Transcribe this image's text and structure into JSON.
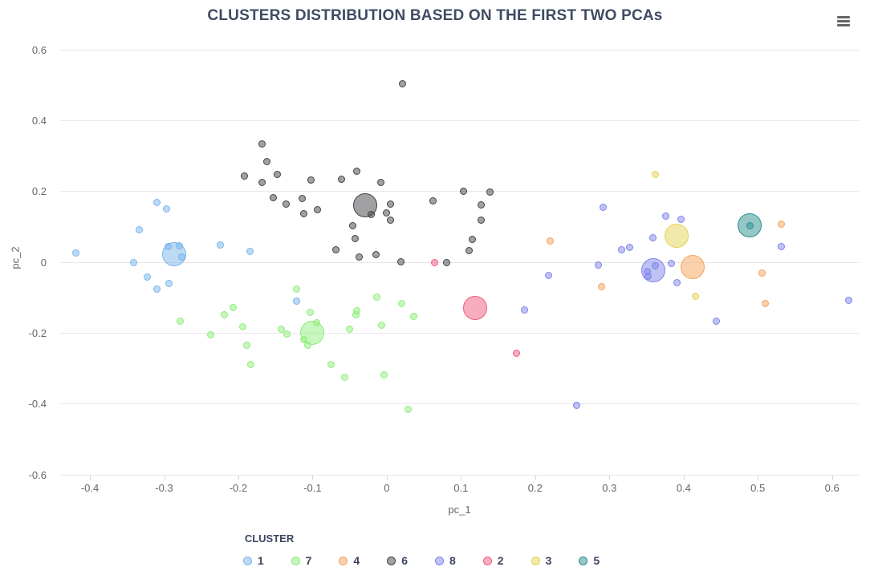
{
  "chart_data": {
    "type": "scatter",
    "title": "CLUSTERS DISTRIBUTION BASED ON THE FIRST TWO PCAs",
    "xlabel": "pc_1",
    "ylabel": "pc_2",
    "xlim": [
      -0.44,
      0.636
    ],
    "ylim": [
      -0.601,
      0.626
    ],
    "grid": "horizontal-only",
    "legend_position": "bottom",
    "legend_title": "CLUSTER",
    "point_radius": 4.5,
    "centroid_radius": 15,
    "x_ticks": [
      {
        "v": -0.4,
        "label": "-0.4"
      },
      {
        "v": -0.3,
        "label": "-0.3"
      },
      {
        "v": -0.2,
        "label": "-0.2"
      },
      {
        "v": -0.1,
        "label": "-0.1"
      },
      {
        "v": 0,
        "label": "0"
      },
      {
        "v": 0.1,
        "label": "0.1"
      },
      {
        "v": 0.2,
        "label": "0.2"
      },
      {
        "v": 0.3,
        "label": "0.3"
      },
      {
        "v": 0.4,
        "label": "0.4"
      },
      {
        "v": 0.5,
        "label": "0.5"
      },
      {
        "v": 0.6,
        "label": "0.6"
      }
    ],
    "y_ticks": [
      {
        "v": 0.6,
        "label": "0.6"
      },
      {
        "v": 0.4,
        "label": "0.4"
      },
      {
        "v": 0.2,
        "label": "0.2"
      },
      {
        "v": 0,
        "label": "0"
      },
      {
        "v": -0.2,
        "label": "-0.2"
      },
      {
        "v": -0.4,
        "label": "-0.4"
      },
      {
        "v": -0.6,
        "label": "-0.6"
      }
    ],
    "series": [
      {
        "name": "1",
        "color": "#7cb5ec",
        "centroid": [
          -0.287,
          0.022
        ],
        "points": [
          [
            -0.419,
            0.025
          ],
          [
            -0.31,
            0.167
          ],
          [
            -0.297,
            0.15
          ],
          [
            -0.334,
            0.09
          ],
          [
            -0.341,
            -0.003
          ],
          [
            -0.295,
            0.043
          ],
          [
            -0.28,
            0.045
          ],
          [
            -0.276,
            0.013
          ],
          [
            -0.323,
            -0.043
          ],
          [
            -0.31,
            -0.076
          ],
          [
            -0.293,
            -0.06
          ],
          [
            -0.224,
            0.047
          ],
          [
            -0.184,
            0.029
          ],
          [
            -0.122,
            -0.11
          ]
        ]
      },
      {
        "name": "7",
        "color": "#90ed7d",
        "centroid": [
          -0.101,
          -0.2
        ],
        "points": [
          [
            -0.207,
            -0.128
          ],
          [
            -0.219,
            -0.15
          ],
          [
            -0.278,
            -0.168
          ],
          [
            -0.237,
            -0.205
          ],
          [
            -0.194,
            -0.184
          ],
          [
            -0.189,
            -0.235
          ],
          [
            -0.183,
            -0.29
          ],
          [
            -0.142,
            -0.19
          ],
          [
            -0.135,
            -0.204
          ],
          [
            -0.122,
            -0.077
          ],
          [
            -0.103,
            -0.143
          ],
          [
            -0.095,
            -0.172
          ],
          [
            -0.112,
            -0.22
          ],
          [
            -0.106,
            -0.235
          ],
          [
            -0.05,
            -0.19
          ],
          [
            -0.041,
            -0.138
          ],
          [
            -0.042,
            -0.15
          ],
          [
            -0.013,
            -0.099
          ],
          [
            -0.007,
            -0.179
          ],
          [
            0.02,
            -0.118
          ],
          [
            0.036,
            -0.153
          ],
          [
            -0.075,
            -0.29
          ],
          [
            -0.057,
            -0.326
          ],
          [
            -0.004,
            -0.318
          ],
          [
            0.029,
            -0.417
          ]
        ]
      },
      {
        "name": "4",
        "color": "#f7a35c",
        "centroid": [
          0.412,
          -0.015
        ],
        "points": [
          [
            0.22,
            0.06
          ],
          [
            0.289,
            -0.07
          ],
          [
            0.506,
            -0.031
          ],
          [
            0.51,
            -0.117
          ],
          [
            0.532,
            0.106
          ]
        ]
      },
      {
        "name": "6",
        "color": "#434348",
        "centroid": [
          -0.029,
          0.16
        ],
        "points": [
          [
            0.021,
            0.503
          ],
          [
            -0.168,
            0.334
          ],
          [
            -0.162,
            0.283
          ],
          [
            -0.192,
            0.242
          ],
          [
            -0.168,
            0.225
          ],
          [
            -0.147,
            0.246
          ],
          [
            -0.153,
            0.181
          ],
          [
            -0.136,
            0.163
          ],
          [
            -0.114,
            0.18
          ],
          [
            -0.112,
            0.135
          ],
          [
            -0.102,
            0.231
          ],
          [
            -0.094,
            0.147
          ],
          [
            -0.061,
            0.234
          ],
          [
            -0.04,
            0.257
          ],
          [
            -0.008,
            0.225
          ],
          [
            -0.021,
            0.133
          ],
          [
            0.005,
            0.163
          ],
          [
            0.0,
            0.138
          ],
          [
            0.005,
            0.117
          ],
          [
            0.062,
            0.172
          ],
          [
            -0.046,
            0.102
          ],
          [
            -0.043,
            0.065
          ],
          [
            -0.069,
            0.034
          ],
          [
            -0.037,
            0.013
          ],
          [
            -0.015,
            0.021
          ],
          [
            0.019,
            0.0
          ],
          [
            0.081,
            -0.002
          ],
          [
            0.103,
            0.2
          ],
          [
            0.139,
            0.198
          ],
          [
            0.127,
            0.16
          ],
          [
            0.127,
            0.117
          ],
          [
            0.115,
            0.063
          ],
          [
            0.111,
            0.032
          ]
        ]
      },
      {
        "name": "8",
        "color": "#8085e9",
        "centroid": [
          0.359,
          -0.024
        ],
        "points": [
          [
            0.291,
            0.153
          ],
          [
            0.376,
            0.129
          ],
          [
            0.396,
            0.12
          ],
          [
            0.359,
            0.068
          ],
          [
            0.316,
            0.034
          ],
          [
            0.327,
            0.041
          ],
          [
            0.285,
            -0.01
          ],
          [
            0.218,
            -0.038
          ],
          [
            0.186,
            -0.136
          ],
          [
            0.351,
            -0.027
          ],
          [
            0.352,
            -0.04
          ],
          [
            0.362,
            -0.012
          ],
          [
            0.383,
            -0.005
          ],
          [
            0.391,
            -0.058
          ],
          [
            0.444,
            -0.168
          ],
          [
            0.256,
            -0.404
          ],
          [
            0.532,
            0.043
          ],
          [
            0.622,
            -0.108
          ]
        ]
      },
      {
        "name": "2",
        "color": "#f15c80",
        "centroid": [
          0.119,
          -0.13
        ],
        "points": [
          [
            0.064,
            -0.002
          ],
          [
            0.175,
            -0.257
          ]
        ]
      },
      {
        "name": "3",
        "color": "#e4d354",
        "centroid": [
          0.39,
          0.074
        ],
        "points": [
          [
            0.362,
            0.246
          ],
          [
            0.416,
            -0.097
          ]
        ]
      },
      {
        "name": "5",
        "color": "#2b908f",
        "centroid": [
          0.489,
          0.103
        ],
        "points": [
          [
            0.489,
            0.102
          ]
        ]
      }
    ]
  },
  "styles": {
    "background": "#ffffff",
    "title_color": "#3f4b63",
    "label_color": "#666666",
    "legend_text_color": "#3a4560",
    "grid_color": "#e6e6e6",
    "axis_line_color": "#ccd6eb",
    "menu_icon_color": "#666666",
    "marker_fill_opacity": 0.5
  },
  "icons": {
    "menu": "hamburger-menu-icon"
  }
}
